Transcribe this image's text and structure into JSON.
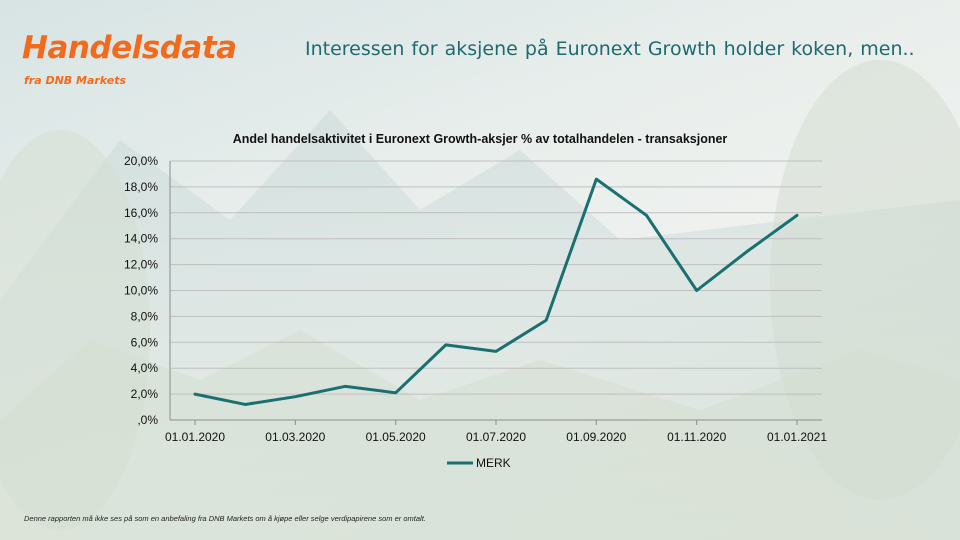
{
  "header": {
    "brand": "Handelsdata",
    "brand_sub": "fra DNB Markets",
    "headline": "Interessen for aksjene på Euronext Growth holder koken, men.."
  },
  "footer": {
    "disclaimer": "Denne rapporten må ikke ses på som en anbefaling fra DNB Markets om å kjøpe eller selge verdipapirene som er omtalt."
  },
  "colors": {
    "brand": "#f26b1d",
    "headline": "#1f6a6f",
    "series": "#1a7070",
    "grid": "#bfbfbf"
  },
  "chart_data": {
    "type": "line",
    "title": "Andel handelsaktivitet i Euronext Growth-aksjer % av totalhandelen - transaksjoner",
    "xlabel": "",
    "ylabel": "",
    "x_ticks": [
      "01.01.2020",
      "01.03.2020",
      "01.05.2020",
      "01.07.2020",
      "01.09.2020",
      "01.11.2020",
      "01.01.2021"
    ],
    "y_ticks": [
      ",0%",
      "2,0%",
      "4,0%",
      "6,0%",
      "8,0%",
      "10,0%",
      "12,0%",
      "14,0%",
      "16,0%",
      "18,0%",
      "20,0%"
    ],
    "ylim": [
      0,
      20
    ],
    "grid": true,
    "legend_position": "bottom",
    "x": [
      "2020-01-01",
      "2020-02-01",
      "2020-03-01",
      "2020-04-01",
      "2020-05-01",
      "2020-06-01",
      "2020-07-01",
      "2020-08-01",
      "2020-09-01",
      "2020-10-01",
      "2020-11-01",
      "2020-12-01",
      "2021-01-01"
    ],
    "series": [
      {
        "name": "MERK",
        "values": [
          2.0,
          1.2,
          1.8,
          2.6,
          2.1,
          5.8,
          5.3,
          7.7,
          18.6,
          15.8,
          10.0,
          13.0,
          15.8
        ]
      }
    ]
  }
}
